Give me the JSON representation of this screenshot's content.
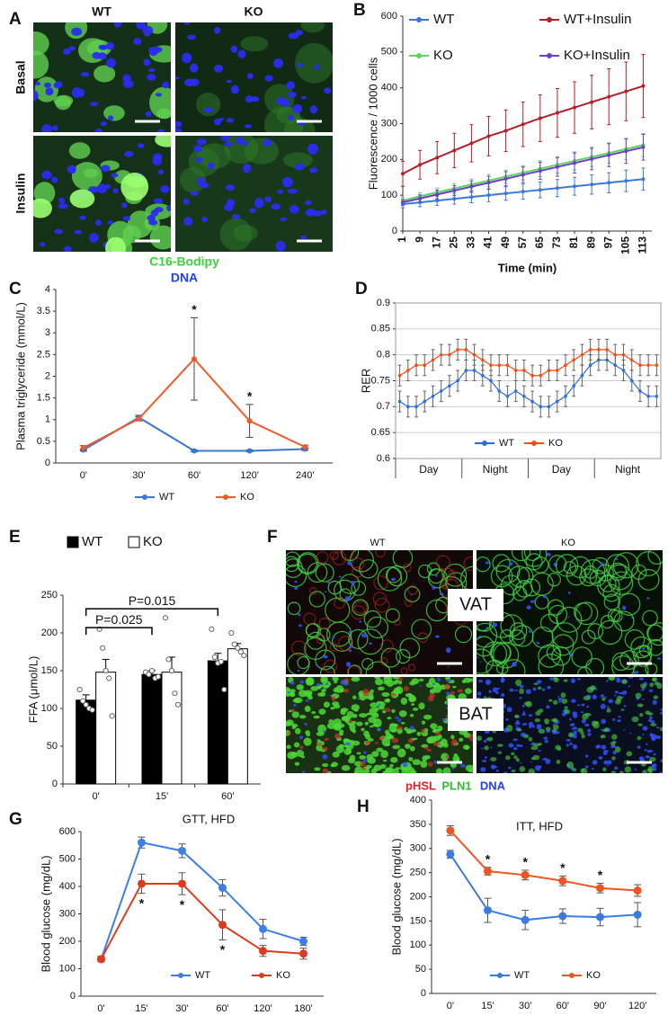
{
  "panel_labels": [
    "A",
    "B",
    "C",
    "D",
    "E",
    "F",
    "G",
    "H"
  ],
  "images": [
    {
      "columns": [
        "WT",
        "KO"
      ],
      "rows": [
        "Basal",
        "Insulin"
      ],
      "caption": [
        "C16-Bodipy",
        "DNA"
      ]
    },
    {
      "columns": [
        "WT",
        "KO"
      ],
      "rows": [
        "VAT",
        "BAT"
      ],
      "caption": [
        "pHSL",
        "PLN1",
        "DNA"
      ]
    }
  ],
  "chart_data": [
    {
      "type": "line",
      "xlabel": "Time (min)",
      "ylabel": "Fluorescence / 1000 cells",
      "x": [
        1,
        9,
        17,
        25,
        33,
        41,
        49,
        57,
        65,
        73,
        81,
        89,
        97,
        105,
        113
      ],
      "xlim": [
        1,
        117
      ],
      "xticks": [
        1,
        9,
        17,
        25,
        33,
        41,
        49,
        57,
        65,
        73,
        81,
        89,
        97,
        105,
        113
      ],
      "ylim": [
        0,
        600
      ],
      "yticks": [
        0,
        100,
        200,
        300,
        400,
        500,
        600
      ],
      "legend": "top",
      "series": [
        {
          "name": "WT",
          "color": "#3c78d8",
          "values": [
            75,
            80,
            85,
            90,
            95,
            100,
            105,
            110,
            115,
            120,
            125,
            130,
            135,
            140,
            145
          ],
          "errors": [
            10,
            12,
            13,
            15,
            16,
            18,
            19,
            21,
            22,
            24,
            25,
            27,
            28,
            30,
            31
          ]
        },
        {
          "name": "WT+Insulin",
          "color": "#b3202a",
          "values": [
            160,
            185,
            205,
            225,
            245,
            265,
            280,
            298,
            315,
            330,
            345,
            360,
            375,
            390,
            405
          ],
          "errors": [
            35,
            40,
            45,
            48,
            52,
            55,
            58,
            62,
            65,
            68,
            72,
            75,
            78,
            82,
            88
          ]
        },
        {
          "name": "KO",
          "color": "#5fd35f",
          "values": [
            85,
            97,
            108,
            119,
            130,
            141,
            152,
            163,
            174,
            185,
            196,
            207,
            218,
            229,
            240
          ],
          "errors": [
            8,
            10,
            12,
            13,
            15,
            17,
            18,
            20,
            22,
            23,
            25,
            27,
            28,
            30,
            32
          ]
        },
        {
          "name": "KO+Insulin",
          "color": "#6a40c8",
          "values": [
            80,
            91,
            102,
            113,
            124,
            135,
            146,
            157,
            168,
            179,
            190,
            201,
            212,
            223,
            234
          ],
          "errors": [
            8,
            10,
            12,
            14,
            16,
            18,
            20,
            22,
            24,
            26,
            28,
            30,
            32,
            34,
            36
          ]
        }
      ]
    },
    {
      "type": "line",
      "ylabel": "Plasma triglyceride (mmol/L)",
      "categories": [
        "0'",
        "30'",
        "60'",
        "120'",
        "240'"
      ],
      "ylim": [
        0,
        4
      ],
      "yticks": [
        0,
        0.5,
        1,
        1.5,
        2,
        2.5,
        3,
        3.5,
        4
      ],
      "legend": "bottom",
      "error_color": "#444444",
      "series": [
        {
          "name": "WT",
          "color": "#3b78d6",
          "values": [
            0.3,
            1.05,
            0.28,
            0.28,
            0.32
          ],
          "errors": [
            0.03,
            0.05,
            0.02,
            0.02,
            0.03
          ]
        },
        {
          "name": "KO",
          "color": "#f05a28",
          "values": [
            0.35,
            1.02,
            2.4,
            0.97,
            0.37
          ],
          "errors": [
            0.05,
            0.05,
            0.95,
            0.38,
            0.04
          ],
          "markers": [
            null,
            null,
            "*",
            "*",
            null
          ]
        }
      ]
    },
    {
      "type": "line",
      "ylabel": "RER",
      "periods": [
        "Day",
        "Night",
        "Day",
        "Night"
      ],
      "ylim": [
        0.6,
        0.9
      ],
      "yticks": [
        0.6,
        0.65,
        0.7,
        0.75,
        0.8,
        0.85,
        0.9
      ],
      "grid": true,
      "legend": "bottom",
      "error_color": "#666666",
      "series": [
        {
          "name": "WT",
          "color": "#2e6fe0",
          "values": [
            0.71,
            0.7,
            0.7,
            0.71,
            0.72,
            0.73,
            0.74,
            0.75,
            0.77,
            0.77,
            0.76,
            0.75,
            0.73,
            0.72,
            0.73,
            0.72,
            0.71,
            0.7,
            0.7,
            0.71,
            0.72,
            0.74,
            0.76,
            0.78,
            0.79,
            0.79,
            0.78,
            0.77,
            0.75,
            0.73,
            0.72,
            0.72
          ],
          "errors": [
            0.02,
            0.02,
            0.02,
            0.02,
            0.02,
            0.02,
            0.02,
            0.02,
            0.02,
            0.02,
            0.02,
            0.02,
            0.02,
            0.02,
            0.02,
            0.02,
            0.02,
            0.02,
            0.02,
            0.02,
            0.02,
            0.02,
            0.02,
            0.02,
            0.02,
            0.02,
            0.02,
            0.02,
            0.02,
            0.02,
            0.02,
            0.02
          ]
        },
        {
          "name": "KO",
          "color": "#ff4a12",
          "values": [
            0.76,
            0.77,
            0.78,
            0.78,
            0.79,
            0.8,
            0.8,
            0.81,
            0.81,
            0.8,
            0.79,
            0.78,
            0.78,
            0.78,
            0.77,
            0.77,
            0.76,
            0.76,
            0.77,
            0.77,
            0.78,
            0.79,
            0.8,
            0.81,
            0.81,
            0.81,
            0.8,
            0.8,
            0.79,
            0.78,
            0.78,
            0.78
          ],
          "errors": [
            0.02,
            0.02,
            0.02,
            0.02,
            0.02,
            0.02,
            0.02,
            0.02,
            0.02,
            0.02,
            0.02,
            0.02,
            0.02,
            0.02,
            0.02,
            0.02,
            0.02,
            0.02,
            0.02,
            0.02,
            0.02,
            0.02,
            0.02,
            0.02,
            0.02,
            0.02,
            0.02,
            0.02,
            0.02,
            0.02,
            0.02,
            0.02
          ]
        }
      ]
    },
    {
      "type": "bar",
      "ylabel": "FFA (μmol/L)",
      "categories": [
        "0'",
        "15'",
        "60'"
      ],
      "ylim": [
        0,
        250
      ],
      "yticks": [
        0,
        50,
        100,
        150,
        200,
        250
      ],
      "legend": "top",
      "series": [
        {
          "name": "WT",
          "color": "#000000",
          "values": [
            111,
            145,
            163
          ],
          "errors": [
            7,
            5,
            10
          ],
          "points": [
            [
              125,
              110,
              105,
              100,
              98
            ],
            [
              148,
              145,
              150,
              140,
              142
            ],
            [
              205,
              168,
              160,
              162,
              125
            ]
          ]
        },
        {
          "name": "KO",
          "color": "#ffffff",
          "values": [
            148,
            148,
            179
          ],
          "errors": [
            17,
            20,
            7
          ],
          "points": [
            [
              205,
              180,
              150,
              140,
              90
            ],
            [
              220,
              165,
              150,
              120,
              105
            ],
            [
              200,
              185,
              180,
              175,
              170
            ]
          ]
        }
      ],
      "brackets": [
        {
          "label": "P=0.025",
          "categories": [
            "0'",
            "15'"
          ],
          "y": 207
        },
        {
          "label": "P=0.015",
          "categories": [
            "0'",
            "60'"
          ],
          "y": 232
        }
      ]
    },
    {
      "type": "line",
      "title": "GTT, HFD",
      "ylabel": "Blood glucose (mg/dL)",
      "categories": [
        "0'",
        "15'",
        "30'",
        "60'",
        "120'",
        "180'"
      ],
      "ylim": [
        0,
        600
      ],
      "yticks": [
        0,
        100,
        200,
        300,
        400,
        500,
        600
      ],
      "legend": "bottom",
      "error_color": "#555555",
      "series": [
        {
          "name": "WT",
          "color": "#3d7fe8",
          "values": [
            135,
            560,
            530,
            395,
            245,
            200
          ],
          "errors": [
            10,
            20,
            25,
            30,
            35,
            15
          ]
        },
        {
          "name": "KO",
          "color": "#e03a1e",
          "values": [
            135,
            410,
            410,
            260,
            165,
            155
          ],
          "errors": [
            10,
            35,
            40,
            55,
            20,
            20
          ],
          "markers": [
            null,
            "*",
            "*",
            "*",
            null,
            null
          ]
        }
      ]
    },
    {
      "type": "line",
      "title": "ITT, HFD",
      "ylabel": "Blood glucose (mg/dL)",
      "categories": [
        "0'",
        "15'",
        "30'",
        "60'",
        "90'",
        "120'"
      ],
      "ylim": [
        0,
        400
      ],
      "yticks": [
        0,
        50,
        100,
        150,
        200,
        250,
        300,
        350,
        400
      ],
      "legend": "bottom",
      "error_color": "#555555",
      "series": [
        {
          "name": "WT",
          "color": "#3a7be0",
          "values": [
            288,
            172,
            152,
            160,
            158,
            163
          ],
          "errors": [
            8,
            25,
            20,
            15,
            18,
            25
          ]
        },
        {
          "name": "KO",
          "color": "#ee5522",
          "values": [
            337,
            253,
            245,
            233,
            218,
            213
          ],
          "errors": [
            10,
            8,
            10,
            10,
            10,
            12
          ],
          "markers": [
            null,
            "*",
            "*",
            "*",
            "*",
            null
          ]
        }
      ]
    }
  ]
}
